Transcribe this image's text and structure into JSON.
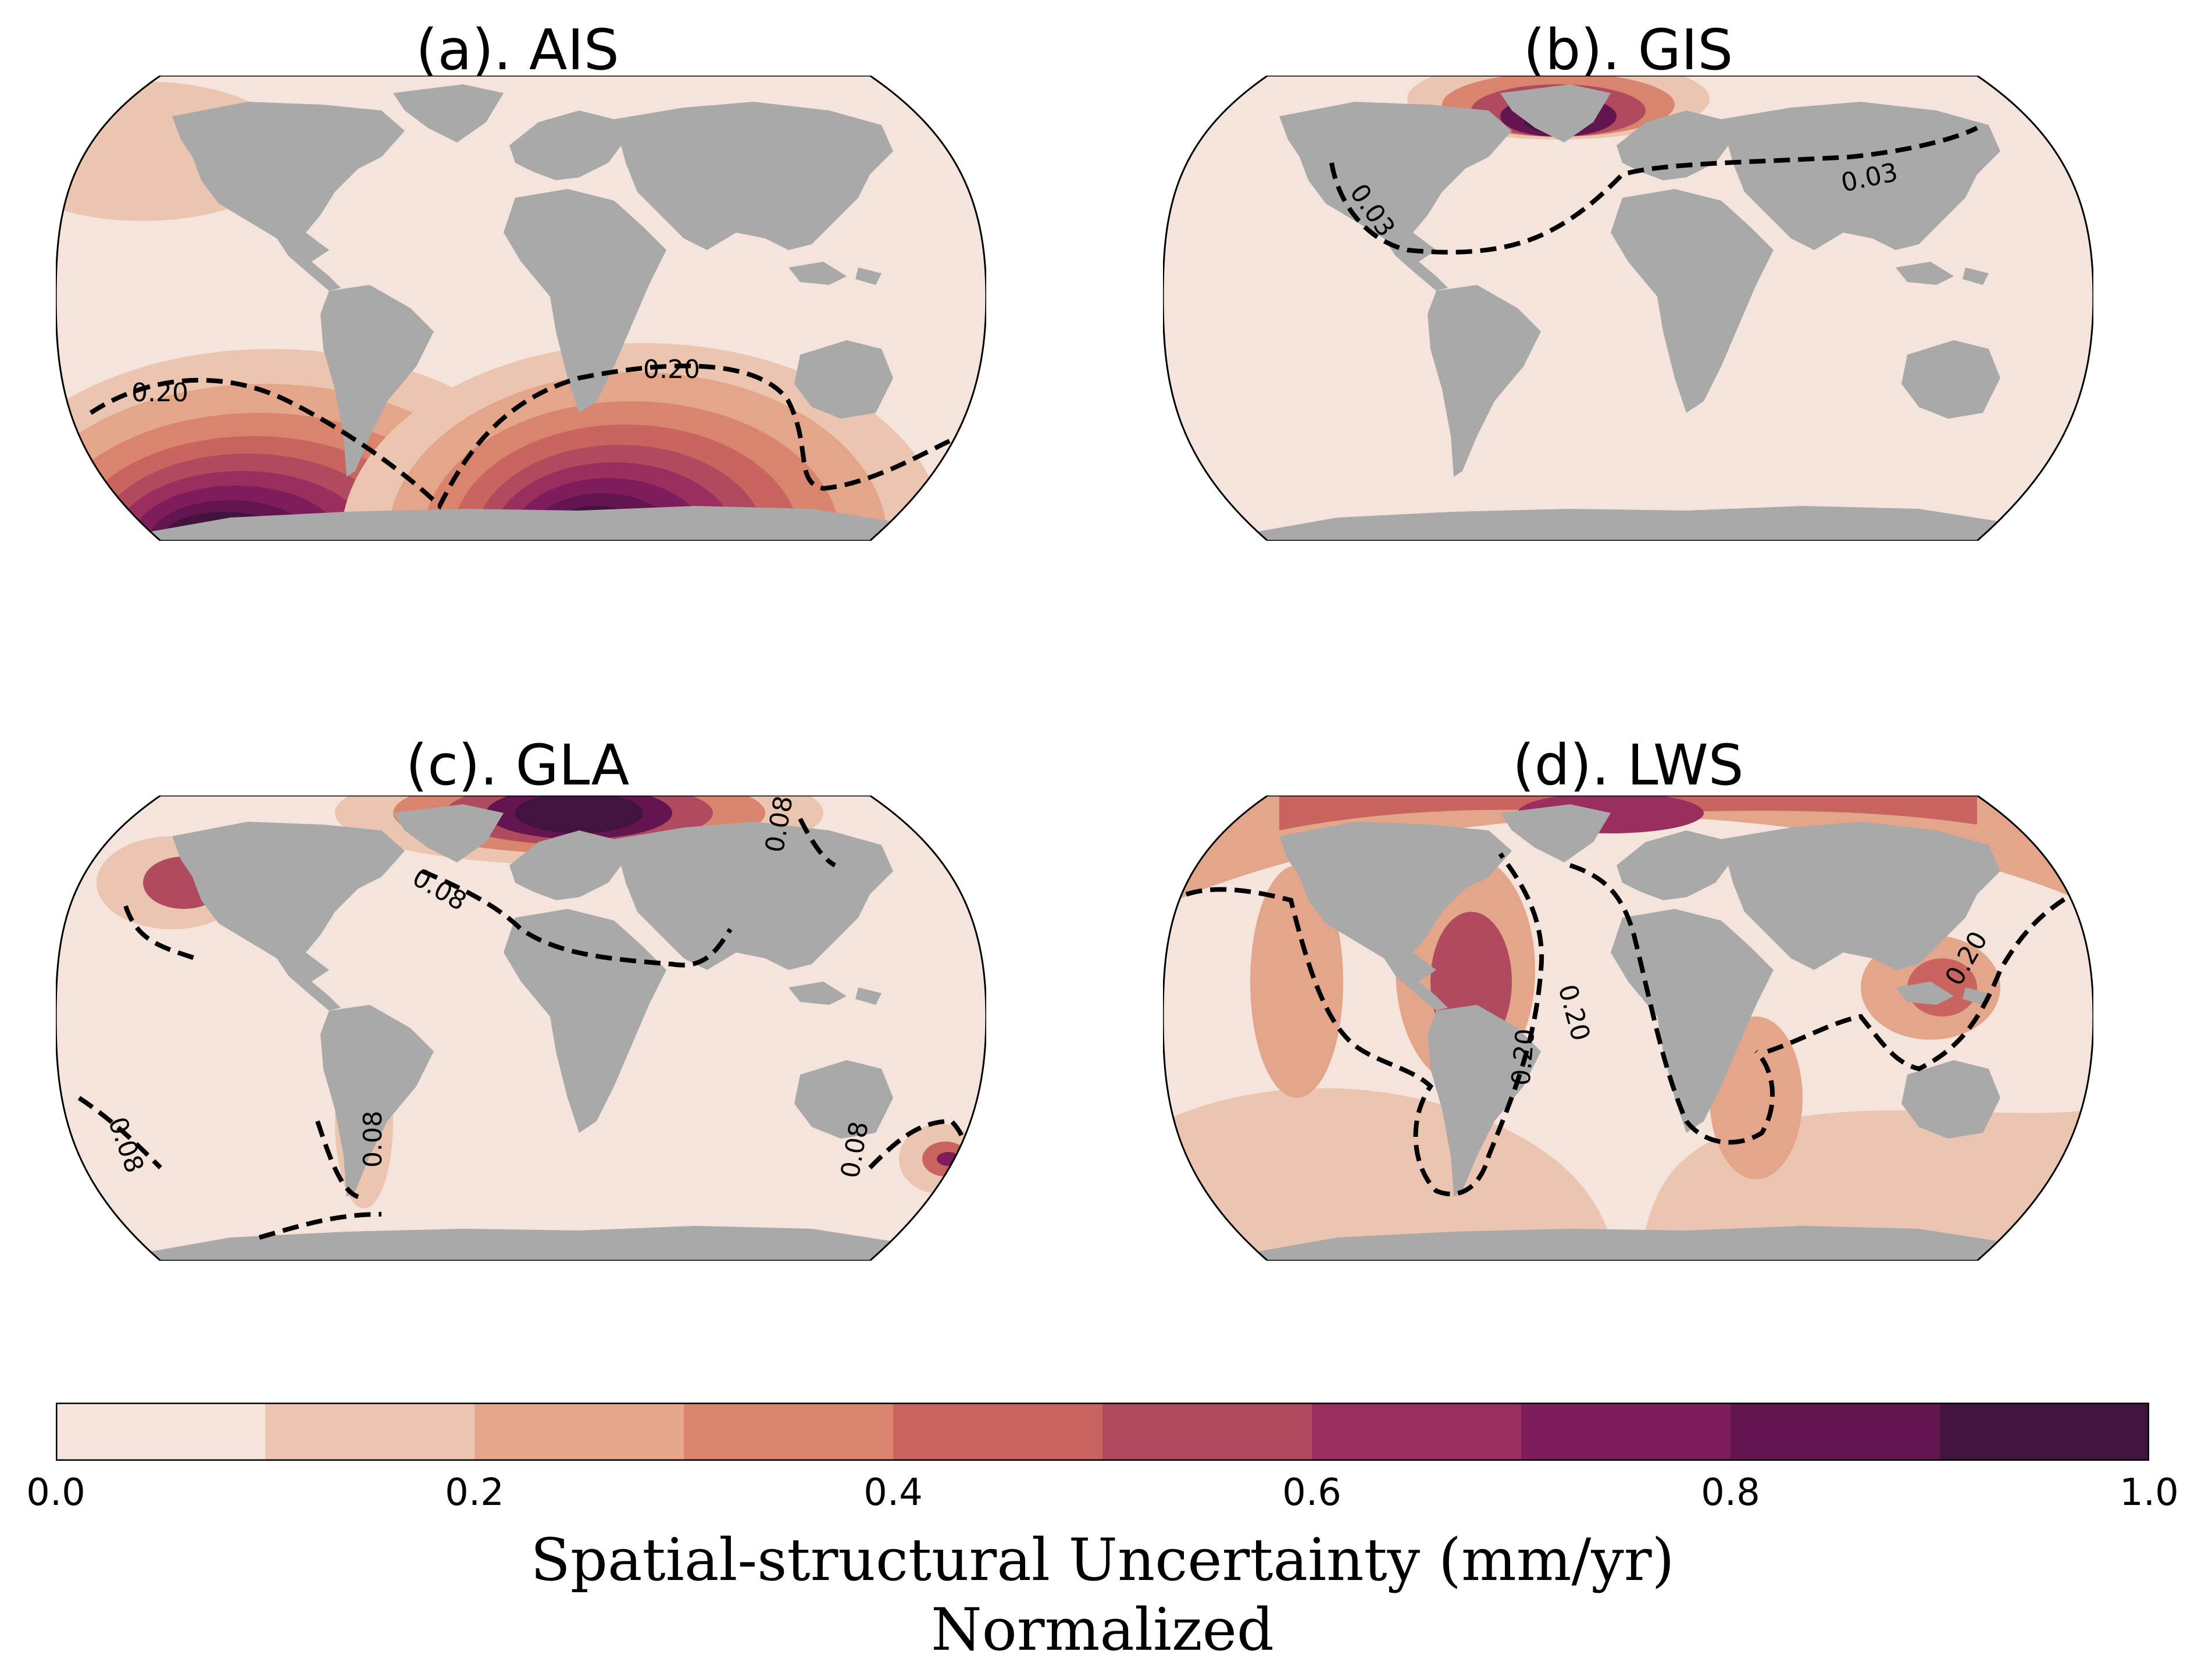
{
  "panels": [
    {
      "id": "a",
      "title": "(a). AIS",
      "contours": [
        "0.20",
        "0.20"
      ]
    },
    {
      "id": "b",
      "title": "(b). GIS",
      "contours": [
        "0.03",
        "0.03"
      ]
    },
    {
      "id": "c",
      "title": "(c). GLA",
      "contours": [
        "0.08",
        "0.08",
        "0.08",
        "0.08",
        "0.08"
      ]
    },
    {
      "id": "d",
      "title": "(d). LWS",
      "contours": [
        "0.20",
        "0.20",
        "0.20"
      ]
    }
  ],
  "colorbar": {
    "ticks": [
      "0.0",
      "0.2",
      "0.4",
      "0.6",
      "0.8",
      "1.0"
    ],
    "bins": [
      0.0,
      0.1,
      0.2,
      0.3,
      0.4,
      0.5,
      0.6,
      0.7,
      0.8,
      0.9,
      1.0
    ],
    "colors": [
      "#f5e4dc",
      "#ecc5b1",
      "#e3a68b",
      "#d9856e",
      "#c9645f",
      "#b04a5e",
      "#9a2f5f",
      "#7e1d5b",
      "#631550",
      "#41143d"
    ],
    "label_line1": "Spatial-structural Uncertainty (mm/yr)",
    "label_line2": "Normalized"
  },
  "colors": {
    "land": "#a9a9a9",
    "ocean_base": "#f5e4dc",
    "contour": "#000000"
  }
}
